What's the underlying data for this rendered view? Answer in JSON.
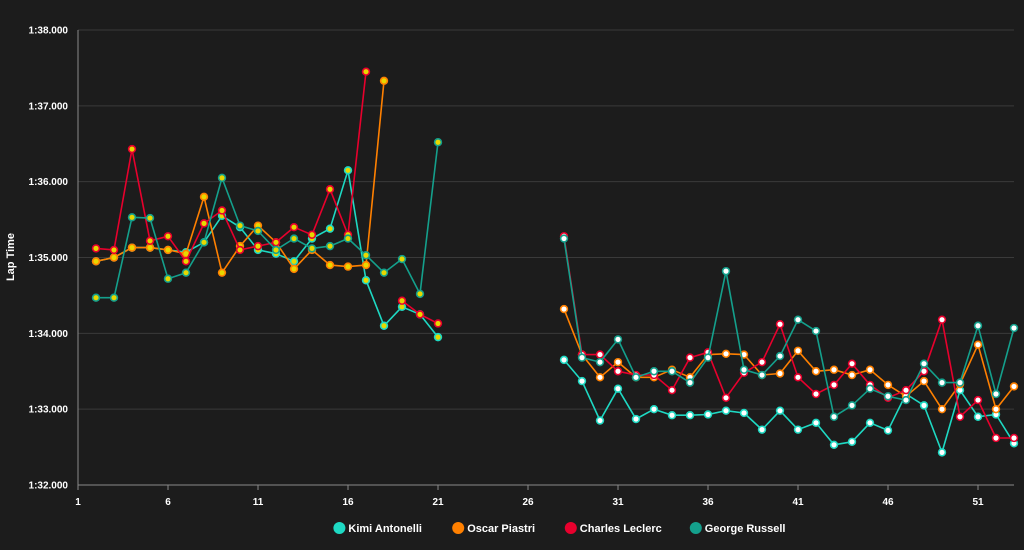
{
  "chart_data": {
    "type": "line",
    "title": "",
    "xlabel": "",
    "ylabel": "Lap Time",
    "background": "#1c1c1c",
    "grid": true,
    "legend_position": "bottom-center",
    "xlim": [
      1,
      53
    ],
    "x_ticks": [
      1,
      6,
      11,
      16,
      21,
      26,
      31,
      36,
      41,
      46,
      51
    ],
    "ylim": [
      92.0,
      98.0
    ],
    "y_ticks": [
      {
        "value": 92,
        "label": "1:32.000"
      },
      {
        "value": 93,
        "label": "1:33.000"
      },
      {
        "value": 94,
        "label": "1:34.000"
      },
      {
        "value": 95,
        "label": "1:35.000"
      },
      {
        "value": 96,
        "label": "1:36.000"
      },
      {
        "value": 97,
        "label": "1:37.000"
      },
      {
        "value": 98,
        "label": "1:38.000"
      }
    ],
    "series": [
      {
        "name": "Kimi Antonelli",
        "color": "#1ed9c3",
        "points": [
          [
            2,
            94.95
          ],
          [
            3,
            95.0
          ],
          [
            4,
            95.13
          ],
          [
            5,
            95.13
          ],
          [
            6,
            95.1
          ],
          [
            7,
            95.07
          ],
          [
            8,
            95.2
          ],
          [
            9,
            95.55
          ],
          [
            10,
            95.4
          ],
          [
            11,
            95.1
          ],
          [
            12,
            95.05
          ],
          [
            13,
            94.95
          ],
          [
            14,
            95.25
          ],
          [
            15,
            95.38
          ],
          [
            16,
            96.15
          ],
          [
            17,
            94.7
          ],
          [
            18,
            94.1
          ],
          [
            19,
            94.35
          ],
          [
            20,
            94.25
          ],
          [
            21,
            93.95
          ],
          [
            28,
            93.65
          ],
          [
            29,
            93.37
          ],
          [
            30,
            92.85
          ],
          [
            31,
            93.27
          ],
          [
            32,
            92.87
          ],
          [
            33,
            93.0
          ],
          [
            34,
            92.92
          ],
          [
            35,
            92.92
          ],
          [
            36,
            92.93
          ],
          [
            37,
            92.98
          ],
          [
            38,
            92.95
          ],
          [
            39,
            92.73
          ],
          [
            40,
            92.98
          ],
          [
            41,
            92.73
          ],
          [
            42,
            92.82
          ],
          [
            43,
            92.53
          ],
          [
            44,
            92.57
          ],
          [
            45,
            92.82
          ],
          [
            46,
            92.72
          ],
          [
            47,
            93.2
          ],
          [
            48,
            93.05
          ],
          [
            49,
            92.43
          ],
          [
            50,
            93.25
          ],
          [
            51,
            92.9
          ],
          [
            52,
            92.93
          ],
          [
            53,
            92.55
          ]
        ]
      },
      {
        "name": "Oscar Piastri",
        "color": "#ff8000",
        "points": [
          [
            2,
            94.95
          ],
          [
            3,
            95.0
          ],
          [
            4,
            95.13
          ],
          [
            5,
            95.13
          ],
          [
            6,
            95.1
          ],
          [
            7,
            95.05
          ],
          [
            8,
            95.8
          ],
          [
            9,
            94.8
          ],
          [
            10,
            95.15
          ],
          [
            11,
            95.42
          ],
          [
            12,
            95.2
          ],
          [
            13,
            94.85
          ],
          [
            14,
            95.1
          ],
          [
            15,
            94.9
          ],
          [
            16,
            94.88
          ],
          [
            17,
            94.9
          ],
          [
            18,
            97.33
          ],
          [
            28,
            94.32
          ],
          [
            29,
            93.72
          ],
          [
            30,
            93.42
          ],
          [
            31,
            93.62
          ],
          [
            32,
            93.42
          ],
          [
            33,
            93.42
          ],
          [
            34,
            93.52
          ],
          [
            35,
            93.42
          ],
          [
            36,
            93.72
          ],
          [
            37,
            93.73
          ],
          [
            38,
            93.72
          ],
          [
            39,
            93.45
          ],
          [
            40,
            93.47
          ],
          [
            41,
            93.77
          ],
          [
            42,
            93.5
          ],
          [
            43,
            93.52
          ],
          [
            44,
            93.45
          ],
          [
            45,
            93.52
          ],
          [
            46,
            93.32
          ],
          [
            47,
            93.17
          ],
          [
            48,
            93.37
          ],
          [
            49,
            93.0
          ],
          [
            50,
            93.33
          ],
          [
            51,
            93.85
          ],
          [
            52,
            93.0
          ],
          [
            53,
            93.3
          ]
        ]
      },
      {
        "name": "Charles Leclerc",
        "color": "#e8002d",
        "points": [
          [
            2,
            95.12
          ],
          [
            3,
            95.1
          ],
          [
            4,
            96.43
          ],
          [
            5,
            95.22
          ],
          [
            6,
            95.28
          ],
          [
            7,
            94.95
          ],
          [
            8,
            95.45
          ],
          [
            9,
            95.62
          ],
          [
            10,
            95.1
          ],
          [
            11,
            95.15
          ],
          [
            12,
            95.2
          ],
          [
            13,
            95.4
          ],
          [
            14,
            95.3
          ],
          [
            15,
            95.9
          ],
          [
            16,
            95.3
          ],
          [
            17,
            97.45
          ],
          [
            19,
            94.43
          ],
          [
            20,
            94.25
          ],
          [
            21,
            94.13
          ],
          [
            28,
            95.28
          ],
          [
            29,
            93.72
          ],
          [
            30,
            93.72
          ],
          [
            31,
            93.5
          ],
          [
            32,
            93.45
          ],
          [
            33,
            93.45
          ],
          [
            34,
            93.25
          ],
          [
            35,
            93.68
          ],
          [
            36,
            93.75
          ],
          [
            37,
            93.15
          ],
          [
            38,
            93.48
          ],
          [
            39,
            93.62
          ],
          [
            40,
            94.12
          ],
          [
            41,
            93.42
          ],
          [
            42,
            93.2
          ],
          [
            43,
            93.32
          ],
          [
            44,
            93.6
          ],
          [
            45,
            93.32
          ],
          [
            46,
            93.15
          ],
          [
            47,
            93.25
          ],
          [
            48,
            93.5
          ],
          [
            49,
            94.18
          ],
          [
            50,
            92.9
          ],
          [
            51,
            93.12
          ],
          [
            52,
            92.62
          ],
          [
            53,
            92.62
          ]
        ]
      },
      {
        "name": "George Russell",
        "color": "#14a08c",
        "points": [
          [
            2,
            94.47
          ],
          [
            3,
            94.47
          ],
          [
            4,
            95.53
          ],
          [
            5,
            95.52
          ],
          [
            6,
            94.72
          ],
          [
            7,
            94.8
          ],
          [
            8,
            95.2
          ],
          [
            9,
            96.05
          ],
          [
            10,
            95.42
          ],
          [
            11,
            95.35
          ],
          [
            12,
            95.1
          ],
          [
            13,
            95.25
          ],
          [
            14,
            95.12
          ],
          [
            15,
            95.15
          ],
          [
            16,
            95.25
          ],
          [
            17,
            95.03
          ],
          [
            18,
            94.8
          ],
          [
            19,
            94.98
          ],
          [
            20,
            94.52
          ],
          [
            21,
            96.52
          ],
          [
            28,
            95.25
          ],
          [
            29,
            93.68
          ],
          [
            30,
            93.62
          ],
          [
            31,
            93.92
          ],
          [
            32,
            93.42
          ],
          [
            33,
            93.5
          ],
          [
            34,
            93.5
          ],
          [
            35,
            93.35
          ],
          [
            36,
            93.68
          ],
          [
            37,
            94.82
          ],
          [
            38,
            93.52
          ],
          [
            39,
            93.45
          ],
          [
            40,
            93.7
          ],
          [
            41,
            94.18
          ],
          [
            42,
            94.03
          ],
          [
            43,
            92.9
          ],
          [
            44,
            93.05
          ],
          [
            45,
            93.27
          ],
          [
            46,
            93.17
          ],
          [
            47,
            93.12
          ],
          [
            48,
            93.6
          ],
          [
            49,
            93.35
          ],
          [
            50,
            93.35
          ],
          [
            51,
            94.1
          ],
          [
            52,
            93.2
          ],
          [
            53,
            94.07
          ]
        ]
      }
    ]
  }
}
